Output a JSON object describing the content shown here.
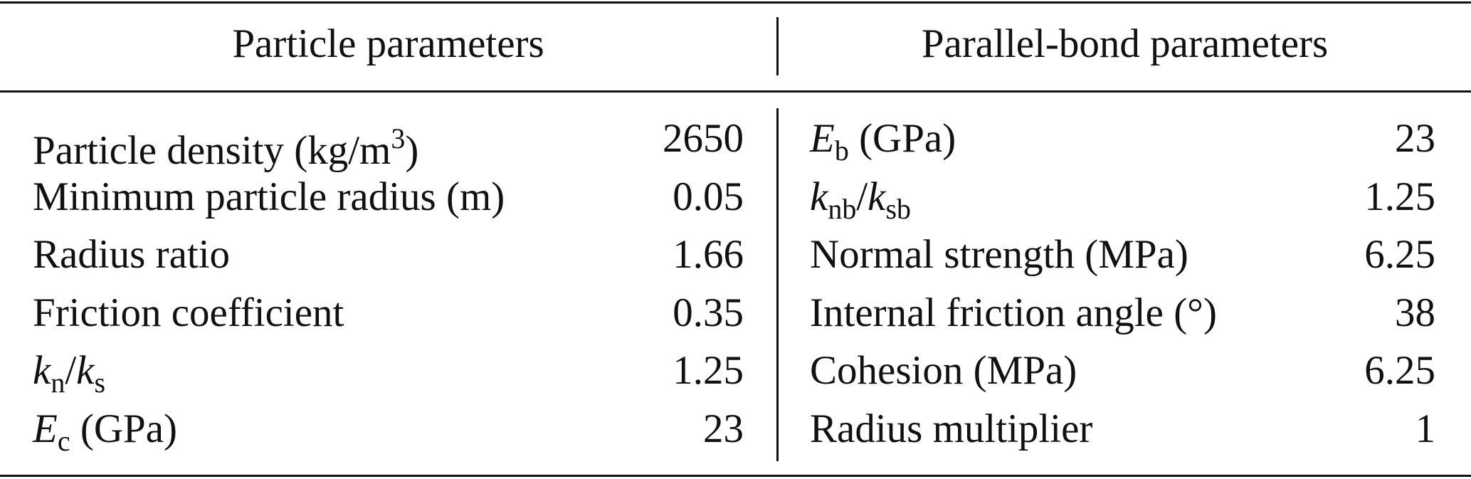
{
  "table": {
    "headers": [
      "Particle parameters",
      "Parallel-bond parameters"
    ],
    "rows": [
      [
        [
          "Particle density (kg/m",
          {
            "sup": "3"
          },
          ")"
        ],
        [
          "2650"
        ],
        [
          {
            "i": "E"
          },
          {
            "sub": "b"
          },
          " (GPa)"
        ],
        [
          "23"
        ]
      ],
      [
        [
          "Minimum particle radius (m)"
        ],
        [
          "0.05"
        ],
        [
          {
            "i": "k"
          },
          {
            "sub": "nb"
          },
          "/",
          {
            "i": "k"
          },
          {
            "sub": "sb"
          }
        ],
        [
          "1.25"
        ]
      ],
      [
        [
          "Radius ratio"
        ],
        [
          "1.66"
        ],
        [
          "Normal strength (MPa)"
        ],
        [
          "6.25"
        ]
      ],
      [
        [
          "Friction coefficient"
        ],
        [
          "0.35"
        ],
        [
          "Internal friction angle (°)"
        ],
        [
          "38"
        ]
      ],
      [
        [
          {
            "i": "k"
          },
          {
            "sub": "n"
          },
          "/",
          {
            "i": "k"
          },
          {
            "sub": "s"
          }
        ],
        [
          "1.25"
        ],
        [
          "Cohesion (MPa)"
        ],
        [
          "6.25"
        ]
      ],
      [
        [
          {
            "i": "E"
          },
          {
            "sub": "c"
          },
          " (GPa)"
        ],
        [
          "23"
        ],
        [
          "Radius multiplier"
        ],
        [
          "1"
        ]
      ]
    ]
  }
}
